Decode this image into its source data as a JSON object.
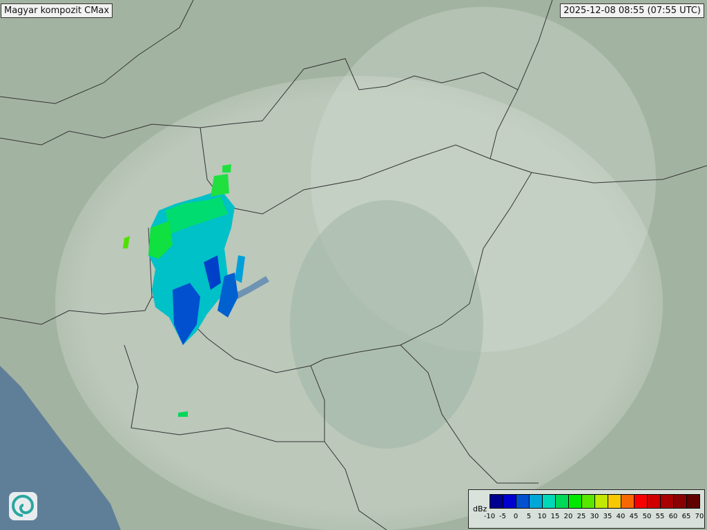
{
  "title": "Magyar kompozit  CMax",
  "timestamp": "2025-12-08 08:55 (07:55 UTC)",
  "legend": {
    "unit": "dBz",
    "ticks": [
      "-10",
      "-5",
      "0",
      "5",
      "10",
      "15",
      "20",
      "25",
      "30",
      "35",
      "40",
      "45",
      "50",
      "55",
      "60",
      "65",
      "70"
    ],
    "colors": [
      "#000090",
      "#0000d0",
      "#0050d0",
      "#00a8d8",
      "#00d8b8",
      "#00d858",
      "#00e800",
      "#58e800",
      "#c0e800",
      "#f8c800",
      "#f86800",
      "#f80000",
      "#d00000",
      "#a80000",
      "#880000",
      "#600000"
    ]
  },
  "logo_icon": "swirl-logo-icon",
  "colors": {
    "land": "#a7b5a4",
    "sea": "#5f7f99",
    "coverage": "#c9d4c9"
  }
}
